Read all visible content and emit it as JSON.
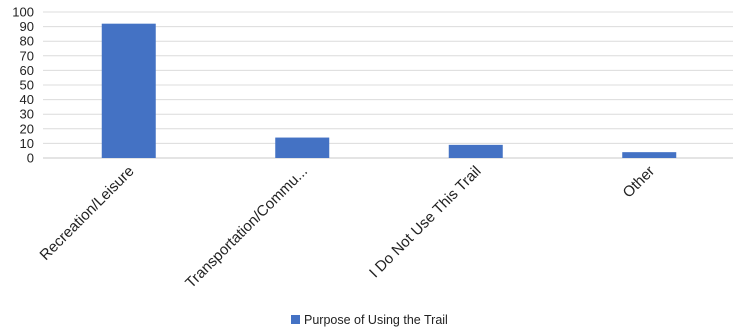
{
  "chart_data": {
    "type": "bar",
    "categories": [
      "Recreation/Leisure",
      "Transportation/Commu...",
      "I Do Not Use This Trail",
      "Other"
    ],
    "series": [
      {
        "name": "Purpose of Using the Trail",
        "values": [
          92,
          14,
          9,
          4
        ],
        "color": "#4472c4"
      }
    ],
    "ylim": [
      0,
      100
    ],
    "yticks": [
      0,
      10,
      20,
      30,
      40,
      50,
      60,
      70,
      80,
      90,
      100
    ],
    "grid": true,
    "legend_position": "bottom-center",
    "title": "",
    "xlabel": "",
    "ylabel": ""
  }
}
